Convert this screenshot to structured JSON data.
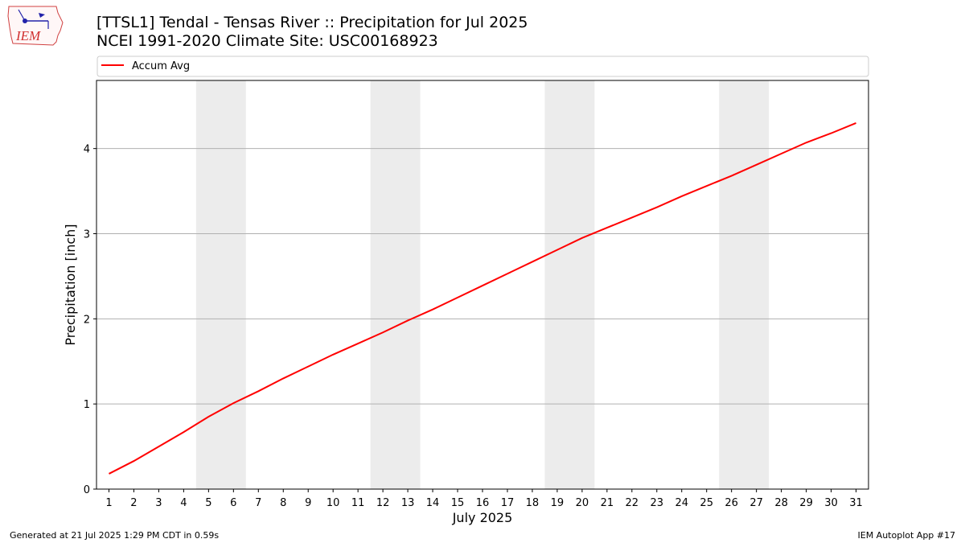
{
  "header": {
    "title_line1": "[TTSL1] Tendal - Tensas River :: Precipitation for Jul 2025",
    "title_line2": "NCEI 1991-2020 Climate Site: USC00168923",
    "logo_text": "IEM"
  },
  "footer": {
    "left": "Generated at 21 Jul 2025 1:29 PM CDT in 0.59s",
    "right": "IEM Autoplot App #17"
  },
  "chart_data": {
    "type": "line",
    "xlabel": "July 2025",
    "ylabel": "Precipitation [inch]",
    "x": [
      1,
      2,
      3,
      4,
      5,
      6,
      7,
      8,
      9,
      10,
      11,
      12,
      13,
      14,
      15,
      16,
      17,
      18,
      19,
      20,
      21,
      22,
      23,
      24,
      25,
      26,
      27,
      28,
      29,
      30,
      31
    ],
    "xlim": [
      0.5,
      31.5
    ],
    "ylim": [
      0,
      4.8
    ],
    "yticks": [
      0,
      1,
      2,
      3,
      4
    ],
    "grid": "y",
    "legend": "top",
    "shaded_weekends": [
      [
        4.5,
        6.5
      ],
      [
        11.5,
        13.5
      ],
      [
        18.5,
        20.5
      ],
      [
        25.5,
        27.5
      ]
    ],
    "series": [
      {
        "name": "Accum Avg",
        "color": "#ff0000",
        "values": [
          0.18,
          0.33,
          0.5,
          0.67,
          0.85,
          1.01,
          1.15,
          1.3,
          1.44,
          1.58,
          1.71,
          1.84,
          1.98,
          2.11,
          2.25,
          2.39,
          2.53,
          2.67,
          2.81,
          2.95,
          3.07,
          3.19,
          3.31,
          3.44,
          3.56,
          3.68,
          3.81,
          3.94,
          4.07,
          4.18,
          4.3
        ]
      }
    ]
  }
}
